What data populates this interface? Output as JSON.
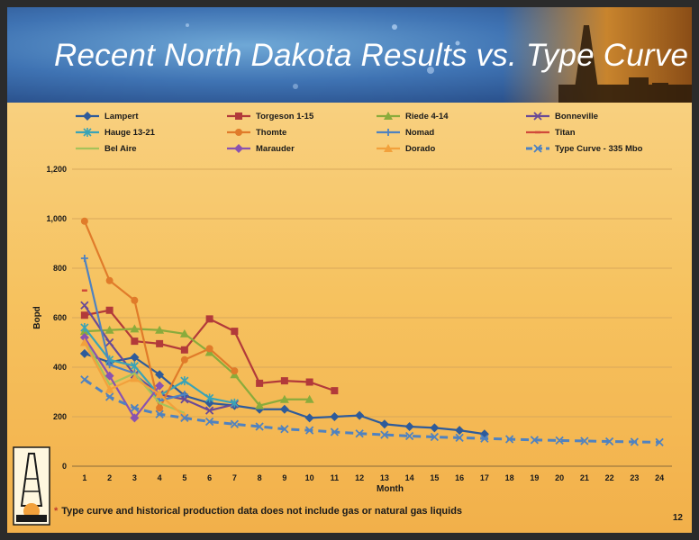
{
  "slide": {
    "title": "Recent North Dakota Results vs. Type Curve",
    "footnote_marker": "*",
    "footnote": "Type curve and historical production data does not include gas or natural gas liquids",
    "page_number": "12"
  },
  "chart_data": {
    "type": "line",
    "xlabel": "Month",
    "ylabel": "Bopd",
    "ylim": [
      0,
      1200
    ],
    "yticks": [
      0,
      200,
      400,
      600,
      800,
      1000,
      1200
    ],
    "ytick_labels": [
      "0",
      "200",
      "400",
      "600",
      "800",
      "1,000",
      "1,200"
    ],
    "xticks": [
      1,
      2,
      3,
      4,
      5,
      6,
      7,
      8,
      9,
      10,
      11,
      12,
      13,
      14,
      15,
      16,
      17,
      18,
      19,
      20,
      21,
      22,
      23,
      24
    ],
    "grid": "horizontal",
    "legend_position": "top",
    "series": [
      {
        "name": "Lampert",
        "color": "#2e5b9a",
        "marker": "diamond",
        "dash": false,
        "x": [
          1,
          2,
          3,
          4,
          5,
          6,
          7,
          8,
          9,
          10,
          11,
          12,
          13,
          14,
          15,
          16,
          17
        ],
        "y": [
          455,
          420,
          440,
          370,
          285,
          255,
          245,
          230,
          230,
          195,
          200,
          205,
          170,
          160,
          155,
          145,
          130
        ]
      },
      {
        "name": "Torgeson 1-15",
        "color": "#b23a3a",
        "marker": "square",
        "dash": false,
        "x": [
          1,
          2,
          3,
          4,
          5,
          6,
          7,
          8,
          9,
          10,
          11
        ],
        "y": [
          610,
          630,
          505,
          495,
          470,
          595,
          545,
          335,
          345,
          340,
          305
        ]
      },
      {
        "name": "Riede 4-14",
        "color": "#8aab3c",
        "marker": "triangle",
        "dash": false,
        "x": [
          1,
          2,
          3,
          4,
          5,
          6,
          7,
          8,
          9,
          10
        ],
        "y": [
          545,
          550,
          555,
          550,
          535,
          460,
          370,
          245,
          270,
          270
        ]
      },
      {
        "name": "Bonneville",
        "color": "#6a4a96",
        "marker": "x",
        "dash": false,
        "x": [
          1,
          2,
          3,
          4,
          5,
          6,
          7
        ],
        "y": [
          650,
          500,
          370,
          290,
          270,
          225,
          250
        ]
      },
      {
        "name": "Hauge 13-21",
        "color": "#3aa3b6",
        "marker": "asterisk",
        "dash": false,
        "x": [
          1,
          2,
          3,
          4,
          5,
          6,
          7
        ],
        "y": [
          560,
          430,
          405,
          285,
          345,
          275,
          255
        ]
      },
      {
        "name": "Thomte",
        "color": "#e07b2a",
        "marker": "circle",
        "dash": false,
        "x": [
          1,
          2,
          3,
          4,
          5,
          6,
          7
        ],
        "y": [
          990,
          750,
          670,
          235,
          430,
          475,
          385
        ]
      },
      {
        "name": "Nomad",
        "color": "#4f82c0",
        "marker": "plus",
        "dash": false,
        "x": [
          1,
          2,
          3,
          4,
          5
        ],
        "y": [
          840,
          410,
          375,
          265,
          290
        ]
      },
      {
        "name": "Titan",
        "color": "#d04a3a",
        "marker": "dash",
        "dash": false,
        "x": [
          1
        ],
        "y": [
          710
        ]
      },
      {
        "name": "Bel Aire",
        "color": "#a6c25a",
        "marker": "none",
        "dash": false,
        "x": [
          1,
          2,
          3,
          4,
          5
        ],
        "y": [
          515,
          330,
          375,
          255,
          215
        ]
      },
      {
        "name": "Marauder",
        "color": "#8a52b0",
        "marker": "diamond",
        "dash": false,
        "x": [
          1,
          2,
          3,
          4
        ],
        "y": [
          520,
          365,
          195,
          325
        ]
      },
      {
        "name": "Dorado",
        "color": "#f2a13c",
        "marker": "triangle",
        "dash": false,
        "x": [
          1,
          2,
          3,
          4,
          5
        ],
        "y": [
          500,
          310,
          355,
          290,
          200
        ]
      },
      {
        "name": "Type Curve - 335 Mbo",
        "color": "#4f82c0",
        "marker": "x",
        "dash": true,
        "x": [
          1,
          2,
          3,
          4,
          5,
          6,
          7,
          8,
          9,
          10,
          11,
          12,
          13,
          14,
          15,
          16,
          17,
          18,
          19,
          20,
          21,
          22,
          23,
          24
        ],
        "y": [
          350,
          280,
          235,
          210,
          195,
          180,
          170,
          160,
          150,
          145,
          138,
          132,
          127,
          122,
          118,
          115,
          112,
          109,
          106,
          104,
          102,
          100,
          98,
          97
        ]
      }
    ]
  }
}
